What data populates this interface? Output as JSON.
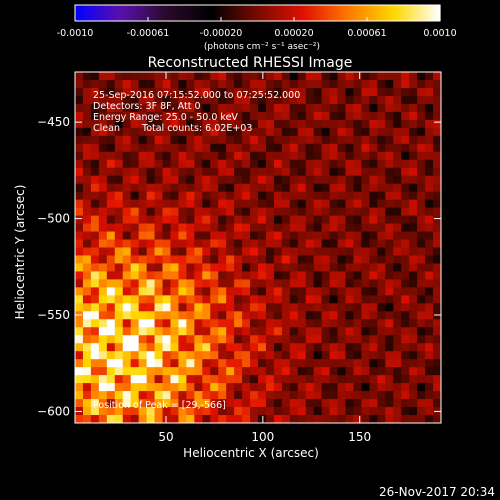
{
  "chart_data": {
    "type": "heatmap",
    "title": "Reconstructed RHESSI Image",
    "xlabel": "Heliocentric X (arcsec)",
    "ylabel": "Heliocentric Y (arcsec)",
    "xlim": [
      3,
      192
    ],
    "ylim": [
      -606,
      -424
    ],
    "xticks": [
      50,
      100,
      150
    ],
    "yticks": [
      -450,
      -500,
      -550,
      -600
    ],
    "colorbar": {
      "label": "(photons cm⁻² s⁻¹ asec⁻²)",
      "range": [
        -0.001,
        0.001
      ],
      "tick_labels": [
        "-0.0010",
        "-0.00061",
        "-0.00020",
        "0.00020",
        "0.00061",
        "0.0010"
      ],
      "colors": [
        "#0000ff",
        "#5a0fae",
        "#2a0a2a",
        "#000000",
        "#7a0a00",
        "#e01000",
        "#ff7a00",
        "#ffd800",
        "#ffffff"
      ]
    },
    "annotations": [
      "25-Sep-2016 07:15:52.000 to 07:25:52.000",
      "Detectors: 3F 8F, Att 0",
      "Energy Range: 25.0 - 50.0 keV",
      "Clean",
      "Total counts: 6.02E+03",
      "Position of Peak = [29,-566]"
    ],
    "peak": {
      "x": 29,
      "y": -566
    },
    "grid": false
  },
  "footer": {
    "timestamp": "26-Nov-2017 20:34"
  }
}
